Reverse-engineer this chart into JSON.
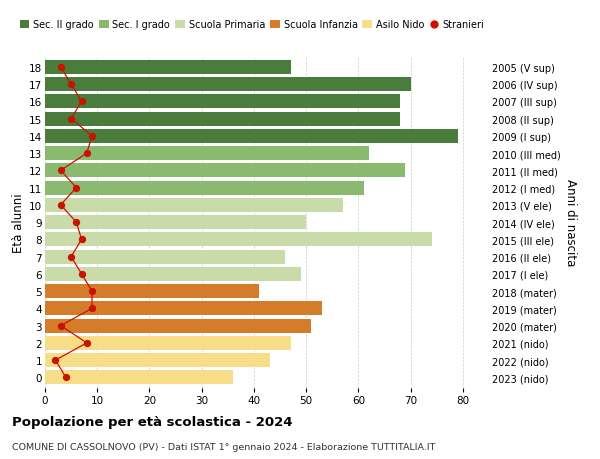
{
  "ages": [
    0,
    1,
    2,
    3,
    4,
    5,
    6,
    7,
    8,
    9,
    10,
    11,
    12,
    13,
    14,
    15,
    16,
    17,
    18
  ],
  "bar_values": [
    36,
    43,
    47,
    51,
    53,
    41,
    49,
    46,
    74,
    50,
    57,
    61,
    69,
    62,
    79,
    68,
    68,
    70,
    47
  ],
  "bar_colors": [
    "#f7dd88",
    "#f7dd88",
    "#f7dd88",
    "#d47c2a",
    "#d47c2a",
    "#d47c2a",
    "#c8dba8",
    "#c8dba8",
    "#c8dba8",
    "#c8dba8",
    "#c8dba8",
    "#8aba70",
    "#8aba70",
    "#8aba70",
    "#4a7c3c",
    "#4a7c3c",
    "#4a7c3c",
    "#4a7c3c",
    "#4a7c3c"
  ],
  "stranieri_values": [
    4,
    2,
    8,
    3,
    9,
    9,
    7,
    5,
    7,
    6,
    3,
    6,
    3,
    8,
    9,
    5,
    7,
    5,
    3
  ],
  "right_labels": [
    "2023 (nido)",
    "2022 (nido)",
    "2021 (nido)",
    "2020 (mater)",
    "2019 (mater)",
    "2018 (mater)",
    "2017 (I ele)",
    "2016 (II ele)",
    "2015 (III ele)",
    "2014 (IV ele)",
    "2013 (V ele)",
    "2012 (I med)",
    "2011 (II med)",
    "2010 (III med)",
    "2009 (I sup)",
    "2008 (II sup)",
    "2007 (III sup)",
    "2006 (IV sup)",
    "2005 (V sup)"
  ],
  "xlim": [
    0,
    85
  ],
  "xticks": [
    0,
    10,
    20,
    30,
    40,
    50,
    60,
    70,
    80
  ],
  "ylabel": "Età alunni",
  "right_ylabel": "Anni di nascita",
  "title": "Popolazione per età scolastica - 2024",
  "subtitle": "COMUNE DI CASSOLNOVO (PV) - Dati ISTAT 1° gennaio 2024 - Elaborazione TUTTITALIA.IT",
  "legend_labels": [
    "Sec. II grado",
    "Sec. I grado",
    "Scuola Primaria",
    "Scuola Infanzia",
    "Asilo Nido",
    "Stranieri"
  ],
  "legend_colors": [
    "#4a7c3c",
    "#8aba70",
    "#c8dba8",
    "#d47c2a",
    "#f7dd88",
    "#cc1100"
  ],
  "bg_color": "#ffffff",
  "bar_height": 0.82,
  "grid_color": "#cccccc"
}
